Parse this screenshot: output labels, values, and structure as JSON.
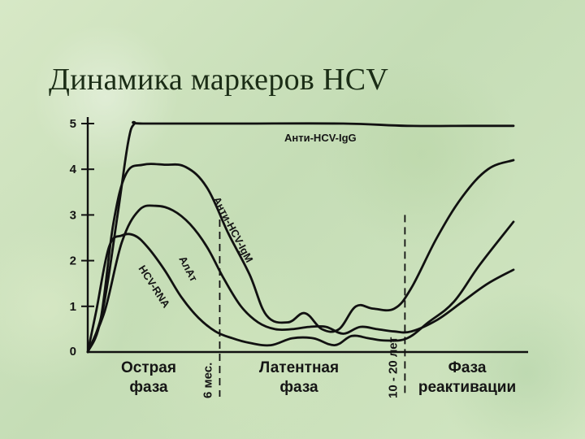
{
  "title": "Динамика маркеров HCV",
  "chart_data": {
    "type": "line",
    "title": "Динамика маркеров HCV",
    "xlabel": "",
    "ylabel": "",
    "ylim": [
      0,
      5
    ],
    "xlim": [
      0,
      10
    ],
    "y_ticks": [
      "0",
      "1",
      "2",
      "3",
      "4",
      "5"
    ],
    "grid": false,
    "legend": "none",
    "categories": [
      "Острая фаза",
      "Латентная фаза",
      "Фаза реактивации"
    ],
    "dividers": [
      {
        "x": 3.1,
        "label": "6 мес."
      },
      {
        "x": 7.45,
        "label": "10 - 20 лет"
      }
    ],
    "series": [
      {
        "name": "Анти-HCV-IgG",
        "x": [
          0,
          0.35,
          0.7,
          0.95,
          1.1,
          1.3,
          3.5,
          6.0,
          7.5,
          9.0,
          10.0
        ],
        "y": [
          0,
          0.9,
          3.0,
          4.6,
          5.0,
          5.0,
          5.0,
          5.0,
          4.95,
          4.95,
          4.95
        ]
      },
      {
        "name": "Анти-HCV-IgM",
        "x": [
          0,
          0.3,
          0.6,
          0.9,
          1.3,
          1.8,
          2.3,
          2.8,
          3.3,
          3.8,
          4.2,
          4.7,
          5.1,
          5.5,
          5.9,
          6.3,
          6.7,
          7.2,
          7.6,
          8.2,
          8.8,
          9.4,
          10.0
        ],
        "y": [
          0,
          0.7,
          2.8,
          3.9,
          4.1,
          4.1,
          4.05,
          3.6,
          2.6,
          1.7,
          0.8,
          0.65,
          0.85,
          0.5,
          0.5,
          1.0,
          0.95,
          0.95,
          1.4,
          2.5,
          3.4,
          4.0,
          4.2
        ]
      },
      {
        "name": "АлАт",
        "x": [
          0,
          0.4,
          0.8,
          1.2,
          1.6,
          2.0,
          2.4,
          2.8,
          3.2,
          3.6,
          4.0,
          4.4,
          4.8,
          5.2,
          5.6,
          6.0,
          6.4,
          6.8,
          7.2,
          7.6,
          8.2,
          8.8,
          9.4,
          10.0
        ],
        "y": [
          0,
          0.9,
          2.4,
          3.1,
          3.2,
          3.1,
          2.8,
          2.3,
          1.6,
          1.0,
          0.65,
          0.5,
          0.5,
          0.55,
          0.55,
          0.4,
          0.55,
          0.5,
          0.45,
          0.45,
          0.7,
          1.1,
          1.5,
          1.8
        ]
      },
      {
        "name": "HCV-RNA",
        "x": [
          0,
          0.2,
          0.5,
          0.8,
          1.1,
          1.4,
          1.8,
          2.2,
          2.6,
          3.0,
          3.4,
          3.8,
          4.3,
          4.8,
          5.3,
          5.8,
          6.2,
          6.6,
          7.0,
          7.5,
          8.0,
          8.6,
          9.2,
          10.0
        ],
        "y": [
          0,
          0.9,
          2.3,
          2.55,
          2.55,
          2.3,
          1.8,
          1.2,
          0.75,
          0.45,
          0.3,
          0.2,
          0.15,
          0.3,
          0.3,
          0.15,
          0.35,
          0.3,
          0.25,
          0.3,
          0.65,
          1.1,
          1.9,
          2.85
        ]
      }
    ]
  }
}
